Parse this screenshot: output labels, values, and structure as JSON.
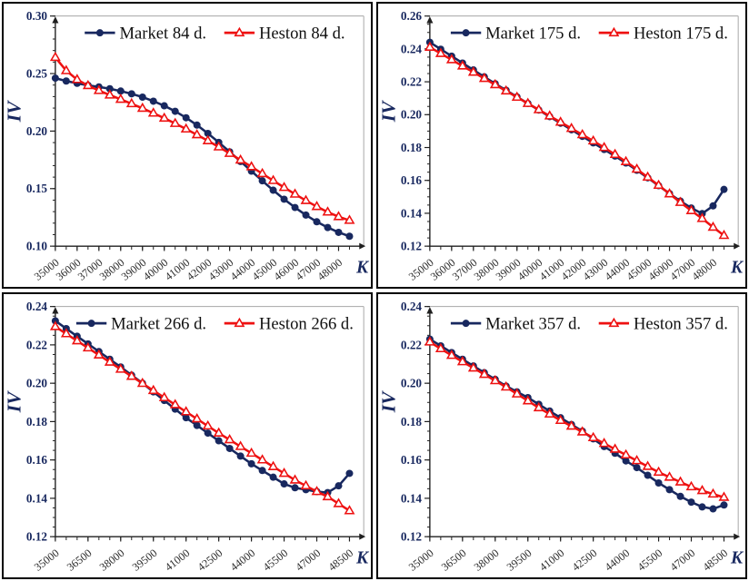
{
  "page": {
    "background": "#ffffff",
    "panel_border_color": "#000000",
    "description": "2x2 grid of implied volatility smile charts: market vs Heston model at four maturities"
  },
  "colors": {
    "market_line": "#18285f",
    "heston_line": "#ee1111",
    "axis": "#1f1f1f",
    "plot_edge": "#a6a6a6",
    "x_tick_label": "#2b2b2b",
    "axis_label": "#18285f",
    "legend_text": "#101010"
  },
  "chart_data": [
    {
      "type": "line",
      "name": "iv-smile-84d",
      "position": "top-left",
      "x_axis_label": "K",
      "y_axis_label": "IV",
      "grid": false,
      "legend_position": "top-inside-horizontal",
      "ylim": [
        0.1,
        0.3
      ],
      "y_major_step": 0.05,
      "y_minor_step": 0.01,
      "y_tick_labels": [
        "0.10",
        "0.15",
        "0.20",
        "0.25",
        "0.30"
      ],
      "x_minor_step": 500,
      "x_tick_labels": [
        "35000",
        "36000",
        "37000",
        "38000",
        "39000",
        "40000",
        "41000",
        "42000",
        "43000",
        "44000",
        "45000",
        "46000",
        "47000",
        "48000"
      ],
      "x": [
        35000,
        35500,
        36000,
        36500,
        37000,
        37500,
        38000,
        38500,
        39000,
        39500,
        40000,
        40500,
        41000,
        41500,
        42000,
        42500,
        43000,
        43500,
        44000,
        44500,
        45000,
        45500,
        46000,
        46500,
        47000,
        47500,
        48000,
        48500
      ],
      "series": [
        {
          "name": "Market 84 d.",
          "marker": "filled-circle",
          "color_key": "market_line",
          "values": [
            0.246,
            0.2435,
            0.2415,
            0.2398,
            0.2384,
            0.2368,
            0.2348,
            0.2324,
            0.2295,
            0.226,
            0.222,
            0.2172,
            0.2116,
            0.2052,
            0.198,
            0.1902,
            0.182,
            0.1736,
            0.1652,
            0.1568,
            0.1486,
            0.1408,
            0.1336,
            0.127,
            0.1212,
            0.1162,
            0.112,
            0.1086
          ]
        },
        {
          "name": "Heston 84 d.",
          "marker": "open-triangle",
          "color_key": "heston_line",
          "values": [
            0.264,
            0.2525,
            0.2448,
            0.2395,
            0.2352,
            0.2313,
            0.2276,
            0.2238,
            0.2198,
            0.2156,
            0.2112,
            0.2066,
            0.2018,
            0.1968,
            0.1916,
            0.1862,
            0.1806,
            0.1748,
            0.169,
            0.163,
            0.157,
            0.151,
            0.1452,
            0.1396,
            0.1344,
            0.1296,
            0.1256,
            0.1224
          ]
        }
      ]
    },
    {
      "type": "line",
      "name": "iv-smile-175d",
      "position": "top-right",
      "x_axis_label": "K",
      "y_axis_label": "IV",
      "grid": false,
      "legend_position": "top-inside-horizontal",
      "ylim": [
        0.12,
        0.26
      ],
      "y_major_step": 0.02,
      "y_minor_step": 0.005,
      "y_tick_labels": [
        "0.12",
        "0.14",
        "0.16",
        "0.18",
        "0.20",
        "0.22",
        "0.24",
        "0.26"
      ],
      "x_minor_step": 500,
      "x_tick_labels": [
        "35000",
        "36000",
        "37000",
        "38000",
        "39000",
        "40000",
        "41000",
        "42000",
        "43000",
        "44000",
        "45000",
        "46000",
        "47000",
        "48000"
      ],
      "x": [
        35000,
        35500,
        36000,
        36500,
        37000,
        37500,
        38000,
        38500,
        39000,
        39500,
        40000,
        40500,
        41000,
        41500,
        42000,
        42500,
        43000,
        43500,
        44000,
        44500,
        45000,
        45500,
        46000,
        46500,
        47000,
        47500,
        48000,
        48500
      ],
      "series": [
        {
          "name": "Market 175 d.",
          "marker": "filled-circle",
          "color_key": "market_line",
          "values": [
            0.244,
            0.2398,
            0.2356,
            0.2314,
            0.2272,
            0.223,
            0.2188,
            0.2148,
            0.2108,
            0.2068,
            0.2028,
            0.1988,
            0.1948,
            0.1908,
            0.1868,
            0.1828,
            0.1788,
            0.1748,
            0.1706,
            0.1662,
            0.1616,
            0.1568,
            0.152,
            0.1474,
            0.1432,
            0.1398,
            0.1445,
            0.1545
          ]
        },
        {
          "name": "Heston 175 d.",
          "marker": "open-triangle",
          "color_key": "heston_line",
          "values": [
            0.241,
            0.2372,
            0.2334,
            0.2296,
            0.2258,
            0.222,
            0.2182,
            0.2144,
            0.2106,
            0.2068,
            0.203,
            0.1992,
            0.1954,
            0.1916,
            0.1878,
            0.184,
            0.18,
            0.1758,
            0.1714,
            0.1668,
            0.162,
            0.157,
            0.1518,
            0.1466,
            0.1416,
            0.1368,
            0.1315,
            0.1265
          ]
        }
      ]
    },
    {
      "type": "line",
      "name": "iv-smile-266d",
      "position": "bottom-left",
      "x_axis_label": "K",
      "y_axis_label": "IV",
      "grid": false,
      "legend_position": "top-inside-horizontal",
      "ylim": [
        0.12,
        0.24
      ],
      "y_major_step": 0.02,
      "y_minor_step": 0.005,
      "y_tick_labels": [
        "0.12",
        "0.14",
        "0.16",
        "0.18",
        "0.20",
        "0.22",
        "0.24"
      ],
      "x_minor_step": 500,
      "x_tick_labels": [
        "35000",
        "36500",
        "38000",
        "39500",
        "41000",
        "42500",
        "44000",
        "45500",
        "47000",
        "48500"
      ],
      "x": [
        35000,
        35500,
        36000,
        36500,
        37000,
        37500,
        38000,
        38500,
        39000,
        39500,
        40000,
        40500,
        41000,
        41500,
        42000,
        42500,
        43000,
        43500,
        44000,
        44500,
        45000,
        45500,
        46000,
        46500,
        47000,
        47500,
        48000,
        48500
      ],
      "series": [
        {
          "name": "Market 266 d.",
          "marker": "filled-circle",
          "color_key": "market_line",
          "values": [
            0.2325,
            0.2285,
            0.2245,
            0.2205,
            0.2165,
            0.2125,
            0.2085,
            0.2042,
            0.2,
            0.1955,
            0.191,
            0.1865,
            0.182,
            0.178,
            0.174,
            0.17,
            0.166,
            0.162,
            0.158,
            0.1545,
            0.151,
            0.1475,
            0.1455,
            0.1445,
            0.1435,
            0.143,
            0.1465,
            0.153
          ]
        },
        {
          "name": "Heston 266 d.",
          "marker": "open-triangle",
          "color_key": "heston_line",
          "values": [
            0.2295,
            0.2258,
            0.2221,
            0.2184,
            0.2147,
            0.211,
            0.2073,
            0.2036,
            0.1999,
            0.1962,
            0.1925,
            0.1888,
            0.1851,
            0.1814,
            0.1777,
            0.174,
            0.1705,
            0.167,
            0.1635,
            0.16,
            0.1565,
            0.153,
            0.1495,
            0.1465,
            0.1435,
            0.1408,
            0.1372,
            0.1335
          ]
        }
      ]
    },
    {
      "type": "line",
      "name": "iv-smile-357d",
      "position": "bottom-right",
      "x_axis_label": "K",
      "y_axis_label": "IV",
      "grid": false,
      "legend_position": "top-inside-horizontal",
      "ylim": [
        0.12,
        0.24
      ],
      "y_major_step": 0.02,
      "y_minor_step": 0.005,
      "y_tick_labels": [
        "0.12",
        "0.14",
        "0.16",
        "0.18",
        "0.20",
        "0.22",
        "0.24"
      ],
      "x_minor_step": 500,
      "x_tick_labels": [
        "35000",
        "36500",
        "38000",
        "39500",
        "41000",
        "42500",
        "44000",
        "45500",
        "47000",
        "48500"
      ],
      "x": [
        35000,
        35500,
        36000,
        36500,
        37000,
        37500,
        38000,
        38500,
        39000,
        39500,
        40000,
        40500,
        41000,
        41500,
        42000,
        42500,
        43000,
        43500,
        44000,
        44500,
        45000,
        45500,
        46000,
        46500,
        47000,
        47500,
        48000,
        48500
      ],
      "series": [
        {
          "name": "Market 357 d.",
          "marker": "filled-circle",
          "color_key": "market_line",
          "values": [
            0.223,
            0.2195,
            0.216,
            0.2125,
            0.209,
            0.2055,
            0.202,
            0.1985,
            0.1955,
            0.1925,
            0.189,
            0.1855,
            0.182,
            0.1785,
            0.175,
            0.171,
            0.167,
            0.1635,
            0.1595,
            0.156,
            0.152,
            0.148,
            0.1445,
            0.141,
            0.138,
            0.1355,
            0.1345,
            0.1365
          ]
        },
        {
          "name": "Heston 357 d.",
          "marker": "open-triangle",
          "color_key": "heston_line",
          "values": [
            0.2215,
            0.218,
            0.2145,
            0.2112,
            0.2079,
            0.2046,
            0.2013,
            0.198,
            0.1944,
            0.1908,
            0.1872,
            0.1839,
            0.1806,
            0.1776,
            0.1746,
            0.1716,
            0.1686,
            0.1656,
            0.1626,
            0.1596,
            0.1566,
            0.1536,
            0.151,
            0.1485,
            0.146,
            0.144,
            0.1422,
            0.1405
          ]
        }
      ]
    }
  ]
}
